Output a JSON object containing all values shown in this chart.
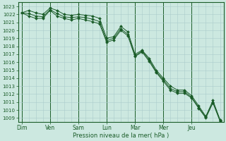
{
  "xlabel": "Pression niveau de la mer( hPa )",
  "background_color": "#cce8e0",
  "grid_color": "#aacccc",
  "line_color": "#1a5c28",
  "ylim": [
    1008.5,
    1023.5
  ],
  "yticks": [
    1009,
    1010,
    1011,
    1012,
    1013,
    1014,
    1015,
    1016,
    1017,
    1018,
    1019,
    1020,
    1021,
    1022,
    1023
  ],
  "day_labels": [
    "Dim",
    "Ven",
    "Sam",
    "Lun",
    "Mar",
    "Mer",
    "Jeu"
  ],
  "day_positions": [
    0,
    4,
    8,
    12,
    16,
    20,
    24
  ],
  "n_points": 29,
  "series1": [
    1022.2,
    1022.5,
    1022.2,
    1022.0,
    1022.8,
    1022.5,
    1022.0,
    1021.9,
    1022.0,
    1021.9,
    1021.8,
    1021.5,
    1019.0,
    1019.2,
    1020.5,
    1019.8,
    1017.0,
    1017.5,
    1016.5,
    1015.0,
    1014.0,
    1013.0,
    1012.5,
    1012.5,
    1011.8,
    1010.5,
    1009.2,
    1011.2,
    1008.8
  ],
  "series2": [
    1022.2,
    1021.8,
    1021.5,
    1021.5,
    1022.5,
    1021.8,
    1021.5,
    1021.3,
    1021.5,
    1021.3,
    1021.1,
    1020.8,
    1018.5,
    1018.8,
    1020.0,
    1019.3,
    1016.7,
    1017.3,
    1016.1,
    1014.7,
    1013.6,
    1012.5,
    1012.1,
    1012.1,
    1011.5,
    1010.2,
    1009.0,
    1010.9,
    1008.6
  ],
  "series3": [
    1022.2,
    1022.1,
    1021.8,
    1021.7,
    1022.6,
    1022.1,
    1021.7,
    1021.6,
    1021.7,
    1021.6,
    1021.4,
    1021.1,
    1018.7,
    1019.0,
    1020.2,
    1019.5,
    1016.8,
    1017.4,
    1016.3,
    1014.8,
    1013.8,
    1012.7,
    1012.3,
    1012.3,
    1011.6,
    1010.3,
    1009.1,
    1011.0,
    1008.7
  ]
}
